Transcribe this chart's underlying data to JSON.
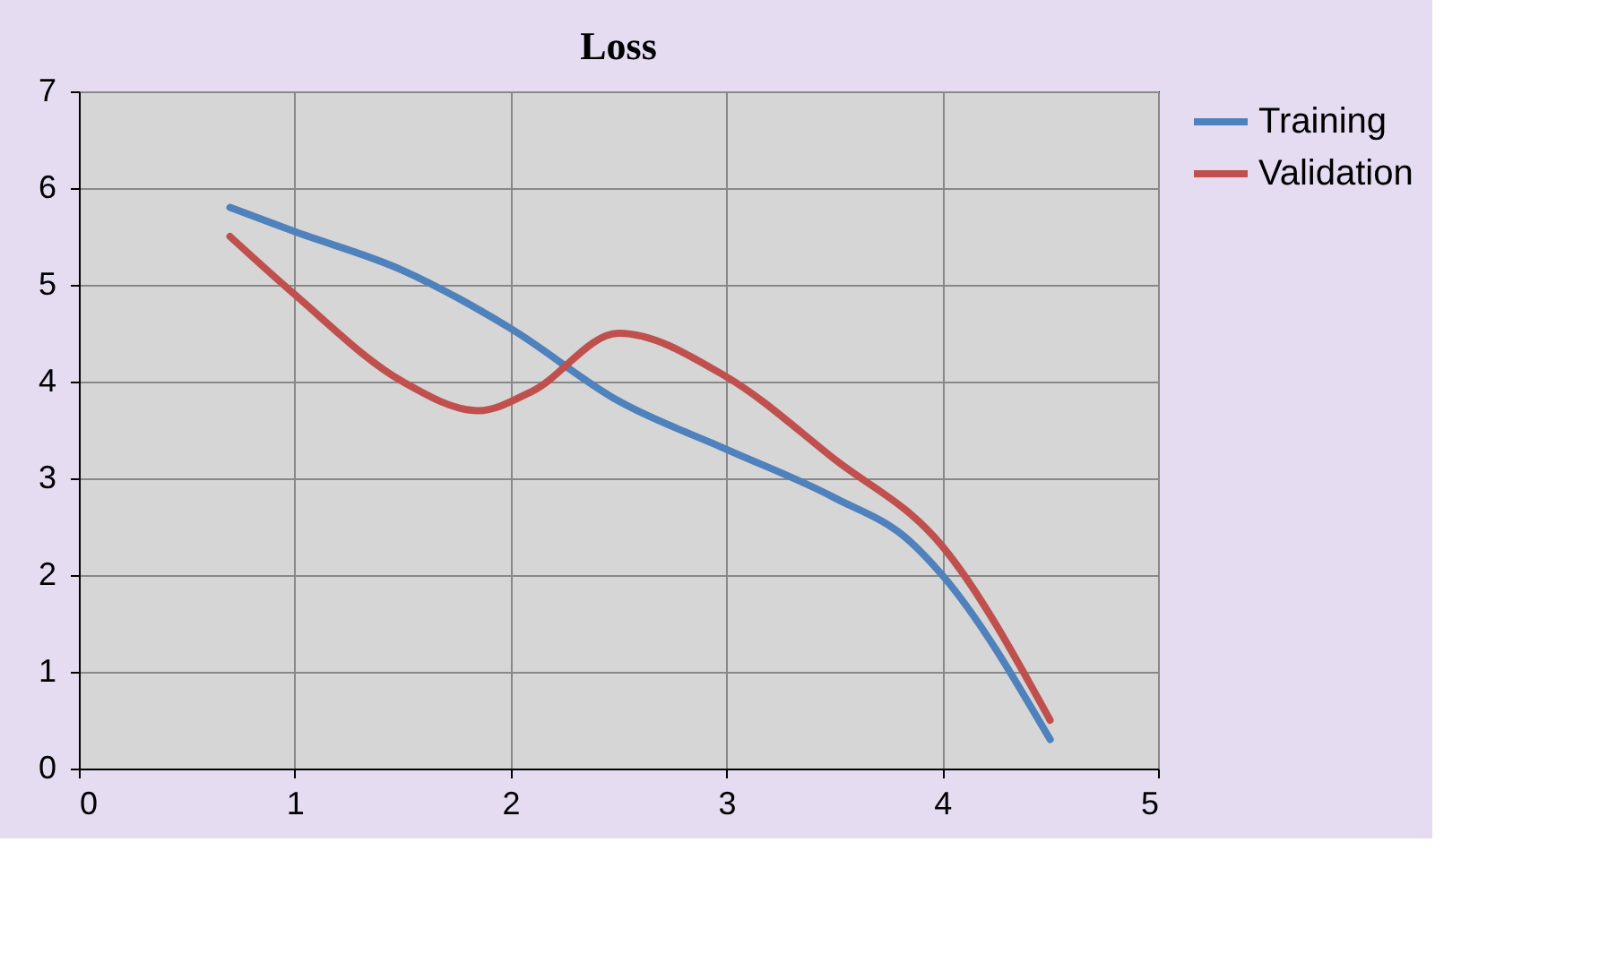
{
  "chart_data": {
    "type": "line",
    "title": "Loss",
    "xlim": [
      0,
      5
    ],
    "xticks": [
      0,
      1,
      2,
      3,
      4,
      5
    ],
    "ylim": [
      0,
      7
    ],
    "yticks": [
      0,
      1,
      2,
      3,
      4,
      5,
      6,
      7
    ],
    "grid": true,
    "legend": "right",
    "series": [
      {
        "name": "Training",
        "color": "#4f81bd",
        "x": [
          0.7,
          1,
          1.5,
          2,
          2.5,
          3,
          3.5,
          3.85,
          4,
          4.5
        ],
        "values": [
          5.8,
          5.55,
          5.15,
          4.55,
          3.8,
          3.3,
          2.8,
          2.35,
          2.0,
          0.3
        ]
      },
      {
        "name": "Validation",
        "color": "#c0504d",
        "x": [
          0.7,
          1,
          1.5,
          1.85,
          2.1,
          2.5,
          3,
          3.5,
          4,
          4.5
        ],
        "values": [
          5.5,
          4.9,
          4.0,
          3.7,
          3.9,
          4.5,
          4.05,
          3.2,
          2.3,
          0.5
        ]
      }
    ]
  }
}
